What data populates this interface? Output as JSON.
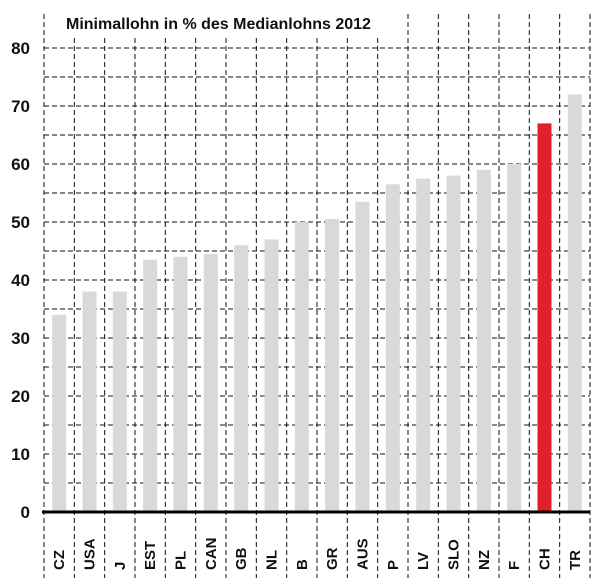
{
  "chart_data": {
    "type": "bar",
    "title": "Minimallohn in % des Medianlohns 2012",
    "xlabel": "",
    "ylabel": "",
    "ylim": [
      0,
      80
    ],
    "yticks": [
      0,
      10,
      20,
      30,
      40,
      50,
      60,
      70,
      80
    ],
    "grid": true,
    "categories": [
      "CZ",
      "USA",
      "J",
      "EST",
      "PL",
      "CAN",
      "GB",
      "NL",
      "B",
      "GR",
      "AUS",
      "P",
      "LV",
      "SLO",
      "NZ",
      "F",
      "CH",
      "TR"
    ],
    "values": [
      34,
      38,
      38,
      43.5,
      44,
      44.5,
      46,
      47,
      50,
      50.5,
      53.5,
      56.5,
      57.5,
      58,
      59,
      60,
      67,
      72
    ],
    "colors": {
      "default": "#d9d9d9",
      "highlight": "#e3202a",
      "highlight_category": "CH"
    }
  }
}
